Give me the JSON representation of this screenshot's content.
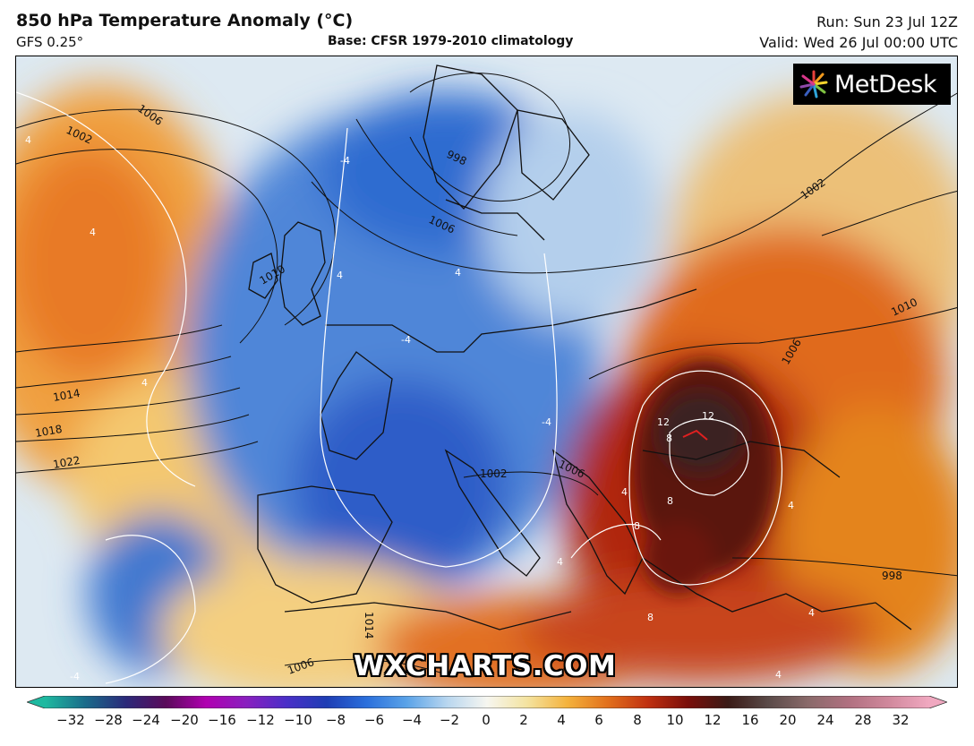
{
  "header": {
    "title": "850 hPa Temperature Anomaly (°C)",
    "model": "GFS 0.25°",
    "base": "Base: CFSR 1979-2010 climatology",
    "run": "Run: Sun 23 Jul 12Z",
    "valid": "Valid: Wed 26 Jul 00:00 UTC"
  },
  "logo": {
    "text": "MetDesk",
    "icon": "sunburst-logo-icon"
  },
  "watermark": "WXCHARTS.COM",
  "isobars": {
    "labels": [
      "1006",
      "1002",
      "1006",
      "998",
      "1010",
      "1014",
      "1018",
      "1022",
      "1002",
      "1006",
      "1010",
      "1002",
      "1006",
      "998",
      "1014",
      "1006"
    ]
  },
  "anomaly_contours": {
    "labels": [
      "4",
      "4",
      "4",
      "-4",
      "4",
      "-4",
      "4",
      "-4",
      "4",
      "12",
      "12",
      "8",
      "8",
      "8",
      "8",
      "4",
      "4",
      "4",
      "4",
      "-4"
    ]
  },
  "colorbar": {
    "ticks": [
      "−32",
      "−28",
      "−24",
      "−20",
      "−16",
      "−12",
      "−10",
      "−8",
      "−6",
      "−4",
      "−2",
      "0",
      "2",
      "4",
      "6",
      "8",
      "10",
      "12",
      "16",
      "20",
      "24",
      "28",
      "32"
    ],
    "stops": [
      "#1eb9a0",
      "#1a6b8a",
      "#2b2a7a",
      "#5a0a5a",
      "#b000b0",
      "#8a1fbf",
      "#4a2fc8",
      "#1e3db4",
      "#2a6fdc",
      "#5aa3e8",
      "#b8d6ef",
      "#f6f6f0",
      "#f4e3a0",
      "#f4b23c",
      "#e2701c",
      "#c03010",
      "#7a0e0a",
      "#3a1a16",
      "#5a4a48",
      "#8a6a6a",
      "#b07080",
      "#d0889c",
      "#f0a8c0"
    ]
  }
}
